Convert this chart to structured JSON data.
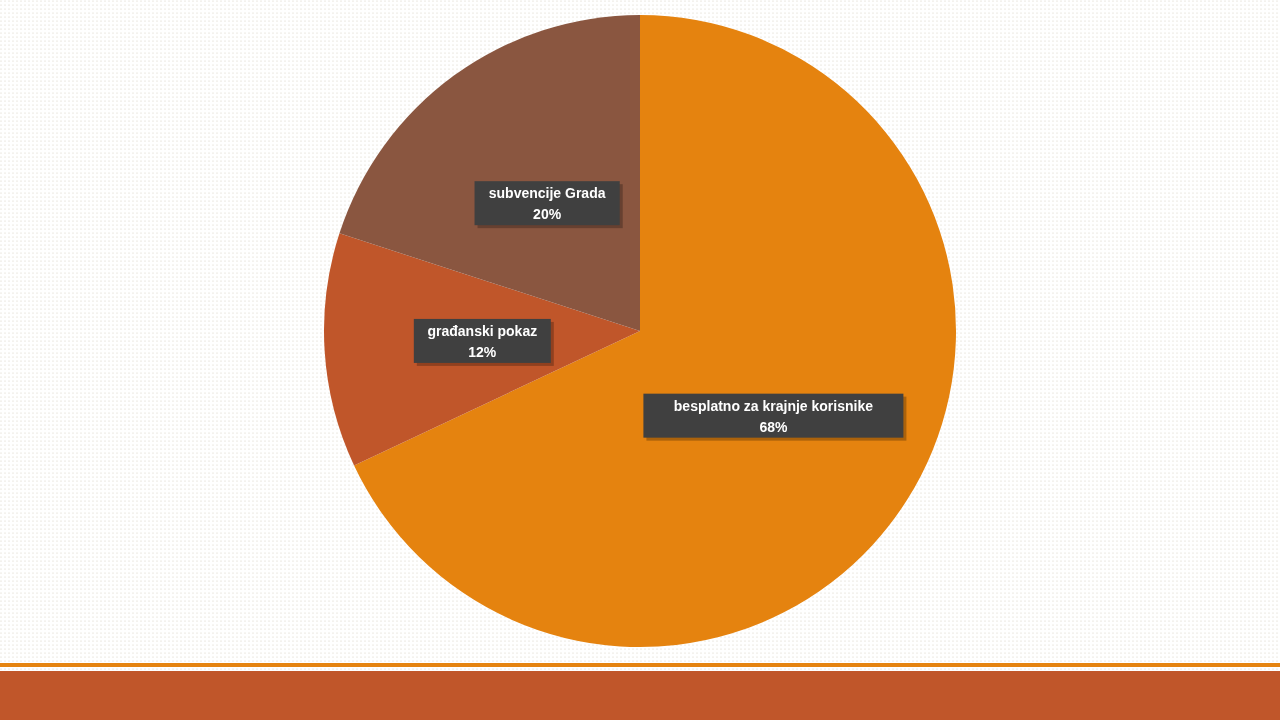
{
  "chart_data": {
    "type": "pie",
    "categories": [
      "besplatno za krajnje korisnike",
      "građanski pokaz",
      "subvencije Grada"
    ],
    "values": [
      68,
      12,
      20
    ],
    "colors": [
      "#e5830f",
      "#c0562a",
      "#8a5640"
    ],
    "value_labels": [
      "68%",
      "12%",
      "20%"
    ]
  }
}
